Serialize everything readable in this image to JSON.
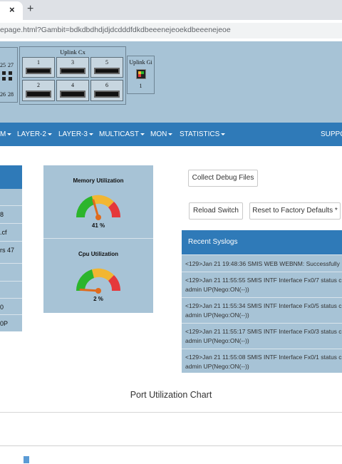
{
  "browser": {
    "tab_close": "×",
    "new_tab": "+",
    "url": "epage.html?Gambit=bdkdbdhdjdjdcdddfdkdbeeenejeoekdbeeenejeoe"
  },
  "device": {
    "left_ports_top": [
      "25",
      "27"
    ],
    "left_ports_bottom": [
      "26",
      "28"
    ],
    "uplink_cx_title": "Uplink Cx",
    "uplink_cx_ports": [
      "1",
      "3",
      "5",
      "2",
      "4",
      "6"
    ],
    "uplink_gi_title": "Uplink Gi",
    "uplink_gi_port": "1"
  },
  "menu": {
    "items": [
      "M",
      "LAYER-2",
      "LAYER-3",
      "MULTICAST",
      "MON",
      "STATISTICS"
    ],
    "support": "SUPPO"
  },
  "left_panel": {
    "rows": [
      "8",
      ".cf",
      "rs 47",
      "",
      "",
      "0",
      "0P"
    ]
  },
  "gauges": [
    {
      "title": "Memory Utilization",
      "value": 41,
      "label": "41 %"
    },
    {
      "title": "Cpu Utilization",
      "value": 2,
      "label": "2 %"
    }
  ],
  "actions": {
    "collect_debug": "Collect Debug Files",
    "reload": "Reload Switch",
    "reset": "Reset to Factory Defaults *"
  },
  "syslog": {
    "title": "Recent Syslogs",
    "entries": [
      {
        "line1": "<129>Jan 21 19:48:36 SMIS WEB WEBNM: Successfully",
        "line2": ""
      },
      {
        "line1": "<129>Jan 21 11:55:55 SMIS INTF Interface Fx0/7 status c",
        "line2": "admin UP(Nego:ON(--))"
      },
      {
        "line1": "<129>Jan 21 11:55:34 SMIS INTF Interface Fx0/5 status c",
        "line2": "admin UP(Nego:ON(--))"
      },
      {
        "line1": "<129>Jan 21 11:55:17 SMIS INTF Interface Fx0/3 status c",
        "line2": "admin UP(Nego:ON(--))"
      },
      {
        "line1": "<129>Jan 21 11:55:08 SMIS INTF Interface Fx0/1 status c",
        "line2": "admin UP(Nego:ON(--))"
      }
    ]
  },
  "chart": {
    "title": "Port Utilization Chart"
  },
  "colors": {
    "header_blue": "#2f7ab8",
    "panel_blue": "#a7c3d6",
    "gauge_green": "#2cb52c",
    "gauge_yellow": "#f2b632",
    "gauge_red": "#e5383b"
  }
}
